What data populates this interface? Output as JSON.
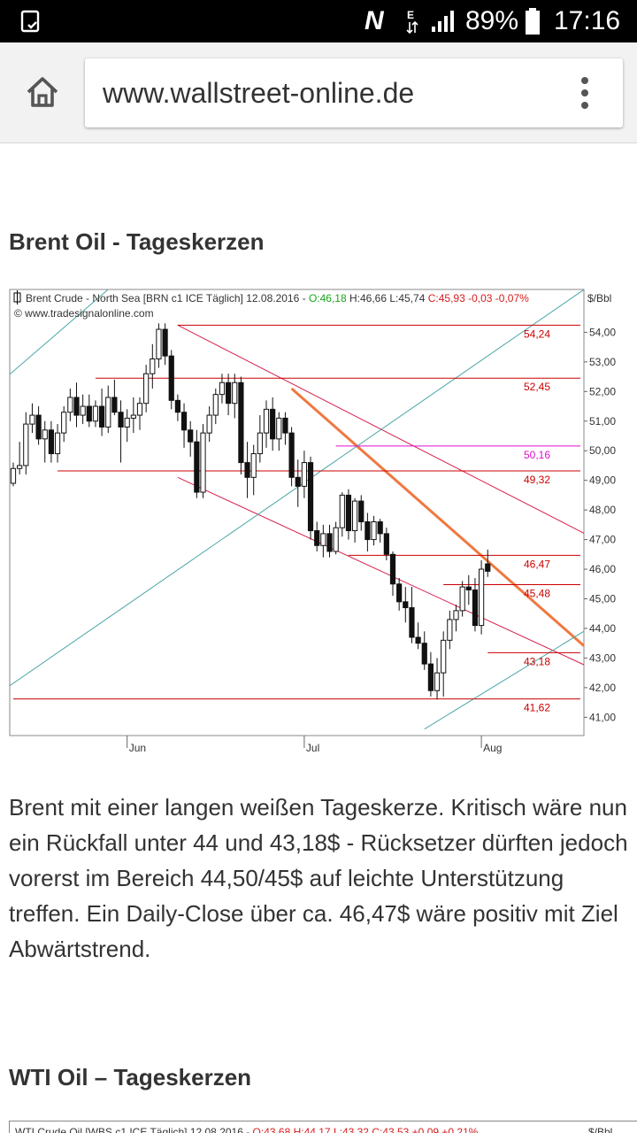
{
  "status_bar": {
    "battery_percent": "89%",
    "time": "17:16",
    "icons": [
      "screenshot-icon",
      "nfc-icon",
      "data-transfer-icon",
      "signal-icon",
      "battery-icon"
    ]
  },
  "browser": {
    "url": "www.wallstreet-online.de",
    "icons": [
      "home-icon",
      "menu-dots-icon"
    ]
  },
  "article": {
    "heading1": "Brent Oil - Tageskerzen",
    "paragraph": "Brent mit einer langen weißen Tageskerze. Kritisch wäre nun ein Rückfall unter 44 und 43,18$ - Rücksetzer dürften jedoch vorerst im Bereich 44,50/45$ auf leichte Unterstützung treffen. Ein Daily-Close über ca. 46,47$ wäre positiv mit Ziel Abwärtstrend.",
    "heading2": "WTI Oil – Tageskerzen",
    "chart2_header": {
      "title": "WTI Crude Oil [WBS c1 ICE  Täglich] 12.08.2016 - ",
      "ohlc": "O:43,68 H:44,17 L:43,32 C:43,53 +0,09 +0,21%",
      "unit": "$/Bbl"
    }
  },
  "chart_data": {
    "type": "candlestick",
    "header_name": "Brent Crude - North Sea [BRN c1 ICE  Täglich] 12.08.2016 - ",
    "header_open": "O:46,18",
    "header_hl": " H:46,66 L:45,74 ",
    "header_change": "C:45,93 -0,03 -0,07%",
    "watermark": "© www.tradesignalonline.com",
    "unit": "$/Bbl",
    "ylim": [
      40.6,
      55.0
    ],
    "y_ticks": [
      "41,00",
      "42,00",
      "43,00",
      "44,00",
      "45,00",
      "46,00",
      "47,00",
      "48,00",
      "49,00",
      "50,00",
      "51,00",
      "52,00",
      "53,00",
      "54,00"
    ],
    "x_labels": [
      {
        "text": "Jun",
        "index": 18
      },
      {
        "text": "Jul",
        "index": 46
      },
      {
        "text": "Aug",
        "index": 74
      }
    ],
    "levels": [
      {
        "value": 54.24,
        "label": "54,24",
        "from": 26,
        "color": "#cc0000"
      },
      {
        "value": 52.45,
        "label": "52,45",
        "from": 13,
        "color": "#cc0000"
      },
      {
        "value": 50.16,
        "label": "50,16",
        "from": 51,
        "color": "#e010d0"
      },
      {
        "value": 49.32,
        "label": "49,32",
        "from": 7,
        "color": "#cc0000"
      },
      {
        "value": 46.47,
        "label": "46,47",
        "from": 53,
        "color": "#cc0000"
      },
      {
        "value": 45.48,
        "label": "45,48",
        "from": 68,
        "color": "#cc0000"
      },
      {
        "value": 43.18,
        "label": "43,18",
        "from": 75,
        "color": "#cc0000"
      },
      {
        "value": 41.62,
        "label": "41,62",
        "from": 0,
        "color": "#cc0000"
      }
    ],
    "trendlines": [
      {
        "name": "downtrend-upper",
        "x1": 26,
        "y1": 54.24,
        "x2": 94,
        "y2": 46.8,
        "color": "#d8204a"
      },
      {
        "name": "downtrend-lower",
        "x1": 26,
        "y1": 49.1,
        "x2": 94,
        "y2": 42.4,
        "color": "#d8204a"
      },
      {
        "name": "downtrend-steep",
        "x1": 44,
        "y1": 52.1,
        "x2": 94,
        "y2": 42.7,
        "color": "#f07840"
      },
      {
        "name": "uptrend-channel-1",
        "x1": -1,
        "y1": 42.0,
        "x2": 94,
        "y2": 56.0,
        "color": "#4da6a6"
      },
      {
        "name": "uptrend-channel-2",
        "x1": -1,
        "y1": 52.5,
        "x2": 94,
        "y2": 70.0,
        "color": "#4da6a6"
      },
      {
        "name": "uptrend-channel-3",
        "x1": 65,
        "y1": 40.6,
        "x2": 94,
        "y2": 44.4,
        "color": "#4da6a6"
      }
    ],
    "candles": [
      [
        48.9,
        49.6,
        48.8,
        49.4
      ],
      [
        49.4,
        50.3,
        49.2,
        49.5
      ],
      [
        49.5,
        51.3,
        49.2,
        50.9
      ],
      [
        50.9,
        51.6,
        50.6,
        51.2
      ],
      [
        51.2,
        51.5,
        50.2,
        50.4
      ],
      [
        50.4,
        51.0,
        49.6,
        50.7
      ],
      [
        50.7,
        51.0,
        49.6,
        49.9
      ],
      [
        49.9,
        50.9,
        49.6,
        50.6
      ],
      [
        50.6,
        51.5,
        50.3,
        51.3
      ],
      [
        51.3,
        52.1,
        51.0,
        51.8
      ],
      [
        51.8,
        52.3,
        50.8,
        51.2
      ],
      [
        51.2,
        51.9,
        50.9,
        51.5
      ],
      [
        51.5,
        51.9,
        50.8,
        51.0
      ],
      [
        51.0,
        51.7,
        50.8,
        51.5
      ],
      [
        51.5,
        52.1,
        50.5,
        50.8
      ],
      [
        50.8,
        52.2,
        50.6,
        51.8
      ],
      [
        51.8,
        52.4,
        51.2,
        51.3
      ],
      [
        51.3,
        51.7,
        49.6,
        50.8
      ],
      [
        50.8,
        51.4,
        50.3,
        51.1
      ],
      [
        51.1,
        51.8,
        50.6,
        51.2
      ],
      [
        51.2,
        51.8,
        50.7,
        51.6
      ],
      [
        51.6,
        52.9,
        51.3,
        52.6
      ],
      [
        52.6,
        53.6,
        52.1,
        53.1
      ],
      [
        53.1,
        54.3,
        52.8,
        54.1
      ],
      [
        54.1,
        54.3,
        52.9,
        53.2
      ],
      [
        53.2,
        53.4,
        51.4,
        51.7
      ],
      [
        51.7,
        51.9,
        51.0,
        51.3
      ],
      [
        51.3,
        51.6,
        50.1,
        50.7
      ],
      [
        50.7,
        51.0,
        49.8,
        50.3
      ],
      [
        50.3,
        50.7,
        48.4,
        48.6
      ],
      [
        48.6,
        50.9,
        48.4,
        50.6
      ],
      [
        50.6,
        51.5,
        50.3,
        51.2
      ],
      [
        51.2,
        52.1,
        50.9,
        51.9
      ],
      [
        51.9,
        52.6,
        51.6,
        52.3
      ],
      [
        52.3,
        52.6,
        51.2,
        51.6
      ],
      [
        51.6,
        52.6,
        51.1,
        52.3
      ],
      [
        52.3,
        52.5,
        49.2,
        49.6
      ],
      [
        49.6,
        50.3,
        48.4,
        49.1
      ],
      [
        49.1,
        50.2,
        48.5,
        49.9
      ],
      [
        49.9,
        51.2,
        49.6,
        50.6
      ],
      [
        50.6,
        51.7,
        50.1,
        51.4
      ],
      [
        51.4,
        51.8,
        50.0,
        50.4
      ],
      [
        50.4,
        51.3,
        50.0,
        51.1
      ],
      [
        51.1,
        51.3,
        50.2,
        50.6
      ],
      [
        50.6,
        50.8,
        48.8,
        49.1
      ],
      [
        49.1,
        49.7,
        48.1,
        48.8
      ],
      [
        48.8,
        50.0,
        48.4,
        49.6
      ],
      [
        49.6,
        49.8,
        47.0,
        47.3
      ],
      [
        47.3,
        47.6,
        46.6,
        46.8
      ],
      [
        46.8,
        47.5,
        46.4,
        47.2
      ],
      [
        47.2,
        47.5,
        46.4,
        46.6
      ],
      [
        46.6,
        47.6,
        46.5,
        47.4
      ],
      [
        47.4,
        48.6,
        47.1,
        48.5
      ],
      [
        48.5,
        48.7,
        47.0,
        47.3
      ],
      [
        47.3,
        48.4,
        46.9,
        48.3
      ],
      [
        48.3,
        48.5,
        47.3,
        47.6
      ],
      [
        47.6,
        47.9,
        46.6,
        47.0
      ],
      [
        47.0,
        47.8,
        46.8,
        47.6
      ],
      [
        47.6,
        47.7,
        46.9,
        47.2
      ],
      [
        47.2,
        47.4,
        46.3,
        46.5
      ],
      [
        46.5,
        46.6,
        45.1,
        45.5
      ],
      [
        45.5,
        45.7,
        44.6,
        44.9
      ],
      [
        44.9,
        45.4,
        44.2,
        44.7
      ],
      [
        44.7,
        45.4,
        43.5,
        43.7
      ],
      [
        43.7,
        44.2,
        43.3,
        43.5
      ],
      [
        43.5,
        43.9,
        42.6,
        42.8
      ],
      [
        42.8,
        43.2,
        41.7,
        41.9
      ],
      [
        41.9,
        43.0,
        41.6,
        42.5
      ],
      [
        42.5,
        43.9,
        41.7,
        43.6
      ],
      [
        43.6,
        44.6,
        43.3,
        44.3
      ],
      [
        44.3,
        44.8,
        43.9,
        44.6
      ],
      [
        44.6,
        45.6,
        44.4,
        45.4
      ],
      [
        45.4,
        45.8,
        44.8,
        45.3
      ],
      [
        45.3,
        45.7,
        43.9,
        44.1
      ],
      [
        44.1,
        46.3,
        43.8,
        46.0
      ],
      [
        46.18,
        46.66,
        45.74,
        45.93
      ]
    ]
  }
}
